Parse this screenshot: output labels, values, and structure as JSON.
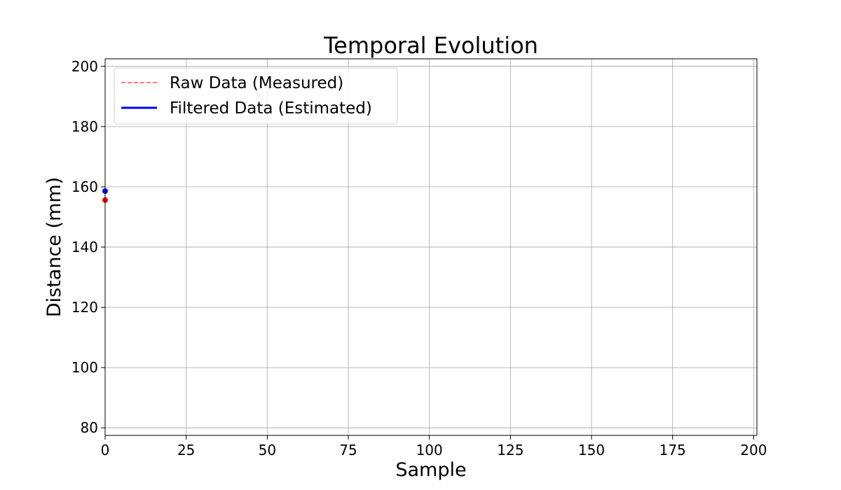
{
  "chart_data": {
    "type": "line",
    "title": "Temporal Evolution",
    "xlabel": "Sample",
    "ylabel": "Distance (mm)",
    "xlim": [
      0,
      201
    ],
    "ylim": [
      77.5,
      202.5
    ],
    "xticks": [
      0,
      25,
      50,
      75,
      100,
      125,
      150,
      175,
      200
    ],
    "yticks": [
      80,
      100,
      120,
      140,
      160,
      180,
      200
    ],
    "grid": true,
    "legend_position": "top-left",
    "series": [
      {
        "name": "Raw Data (Measured)",
        "color": "#ff0000",
        "style": "dashed",
        "x": [
          0
        ],
        "y": [
          155.6
        ]
      },
      {
        "name": "Filtered Data (Estimated)",
        "color": "#0000ff",
        "style": "solid",
        "x": [
          0
        ],
        "y": [
          158.6
        ]
      }
    ]
  }
}
